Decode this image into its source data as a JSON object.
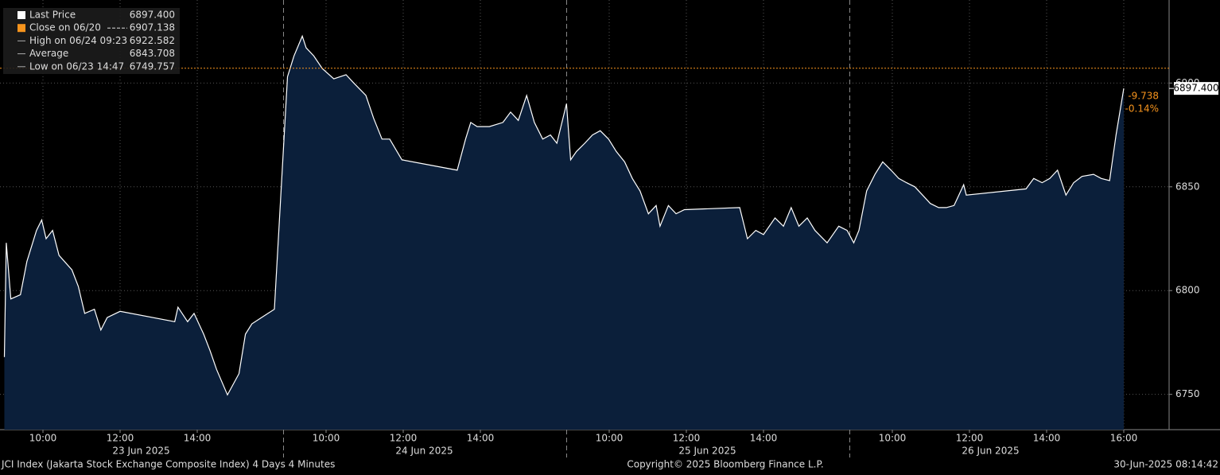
{
  "chart_data": {
    "type": "area",
    "footer_left": "JCI Index (Jakarta Stock Exchange Composite Index) 4 Days 4 Minutes",
    "footer_center": "Copyright© 2025 Bloomberg Finance L.P.",
    "footer_right": "30-Jun-2025 08:14:42",
    "legend": [
      {
        "name": "Last Price",
        "value": {
          "value": 6897.4,
          "label": "6897.400"
        },
        "color": "#ffffff"
      },
      {
        "name": "Close on 06/20",
        "value": 6907.138,
        "color": "#f7941d"
      },
      {
        "name": "High on 06/24 09:23",
        "value": 6922.582,
        "color": "#aaaaaa"
      },
      {
        "name": "Average",
        "value": 6843.708,
        "color": "#aaaaaa"
      },
      {
        "name": "Low on 06/23 14:47",
        "value": 6749.757,
        "color": "#aaaaaa"
      }
    ],
    "last_label": {
      "value": 6897.4,
      "label": "6897.400"
    },
    "change": [
      -9.738,
      {
        "value": -0.14,
        "label": "-0.14%"
      }
    ],
    "day_labels": [
      "23 Jun 2025",
      "24 Jun 2025",
      "25 Jun 2025",
      "26 Jun 2025"
    ],
    "ylim": [
      6733,
      6940
    ],
    "yticks": [
      6750,
      6800,
      6850,
      6900
    ],
    "grid": true,
    "xticks": [
      {
        "value": "2025-06-23 10:00",
        "label": "10:00"
      },
      {
        "value": "2025-06-23 12:00",
        "label": "12:00"
      },
      {
        "value": "2025-06-23 14:00",
        "label": "14:00"
      },
      {
        "value": "2025-06-24 10:00",
        "label": "10:00"
      },
      {
        "value": "2025-06-24 12:00",
        "label": "12:00"
      },
      {
        "value": "2025-06-24 14:00",
        "label": "14:00"
      },
      {
        "value": "2025-06-25 10:00",
        "label": "10:00"
      },
      {
        "value": "2025-06-25 12:00",
        "label": "12:00"
      },
      {
        "value": "2025-06-25 14:00",
        "label": "14:00"
      },
      {
        "value": "2025-06-26 10:00",
        "label": "10:00"
      },
      {
        "value": "2025-06-26 12:00",
        "label": "12:00"
      },
      {
        "value": "2025-06-26 14:00",
        "label": "14:00"
      },
      {
        "value": "2025-06-26 16:00",
        "label": "16:00"
      }
    ],
    "series": [
      {
        "name": "Last Price",
        "color": "#ffffff",
        "fill": "#0b1f3a",
        "x": [
          "2025-06-23 09:00",
          "2025-06-23 09:03",
          "2025-06-23 09:10",
          "2025-06-23 09:25",
          "2025-06-23 09:35",
          "2025-06-23 09:50",
          "2025-06-23 09:58",
          "2025-06-23 10:05",
          "2025-06-23 10:15",
          "2025-06-23 10:25",
          "2025-06-23 10:45",
          "2025-06-23 10:55",
          "2025-06-23 11:05",
          "2025-06-23 11:20",
          "2025-06-23 11:30",
          "2025-06-23 11:40",
          "2025-06-23 12:00",
          "2025-06-23 13:25",
          "2025-06-23 13:30",
          "2025-06-23 13:45",
          "2025-06-23 13:55",
          "2025-06-23 14:10",
          "2025-06-23 14:20",
          "2025-06-23 14:30",
          "2025-06-23 14:47",
          "2025-06-23 15:05",
          "2025-06-23 15:15",
          "2025-06-23 15:25",
          "2025-06-23 15:40",
          "2025-06-23 15:50",
          "2025-06-23 16:00",
          "2025-06-24 09:00",
          "2025-06-24 09:10",
          "2025-06-24 09:23",
          "2025-06-24 09:29",
          "2025-06-24 09:41",
          "2025-06-24 09:54",
          "2025-06-24 10:12",
          "2025-06-24 10:31",
          "2025-06-24 10:43",
          "2025-06-24 11:02",
          "2025-06-24 11:14",
          "2025-06-24 11:27",
          "2025-06-24 11:39",
          "2025-06-24 11:58",
          "2025-06-24 13:24",
          "2025-06-24 13:37",
          "2025-06-24 13:45",
          "2025-06-24 13:55",
          "2025-06-24 14:14",
          "2025-06-24 14:35",
          "2025-06-24 14:47",
          "2025-06-24 14:59",
          "2025-06-24 15:12",
          "2025-06-24 15:24",
          "2025-06-24 15:37",
          "2025-06-24 15:49",
          "2025-06-24 15:59",
          "2025-06-24 16:14",
          "2025-06-25 09:00",
          "2025-06-25 09:09",
          "2025-06-25 09:22",
          "2025-06-25 09:34",
          "2025-06-25 09:46",
          "2025-06-25 09:59",
          "2025-06-25 10:11",
          "2025-06-25 10:24",
          "2025-06-25 10:36",
          "2025-06-25 10:48",
          "2025-06-25 11:01",
          "2025-06-25 11:13",
          "2025-06-25 11:19",
          "2025-06-25 11:32",
          "2025-06-25 11:44",
          "2025-06-25 11:57",
          "2025-06-25 13:23",
          "2025-06-25 13:35",
          "2025-06-25 13:48",
          "2025-06-25 14:00",
          "2025-06-25 14:18",
          "2025-06-25 14:31",
          "2025-06-25 14:43",
          "2025-06-25 14:55",
          "2025-06-25 15:08",
          "2025-06-25 15:20",
          "2025-06-25 15:39",
          "2025-06-25 15:57",
          "2025-06-25 16:10",
          "2025-06-26 09:00",
          "2025-06-26 09:08",
          "2025-06-26 09:20",
          "2025-06-26 09:33",
          "2025-06-26 09:45",
          "2025-06-26 09:58",
          "2025-06-26 10:10",
          "2025-06-26 10:22",
          "2025-06-26 10:35",
          "2025-06-26 10:47",
          "2025-06-26 10:59",
          "2025-06-26 11:12",
          "2025-06-26 11:24",
          "2025-06-26 11:36",
          "2025-06-26 11:51",
          "2025-06-26 11:55",
          "2025-06-26 13:28",
          "2025-06-26 13:40",
          "2025-06-26 13:53",
          "2025-06-26 14:05",
          "2025-06-26 14:17",
          "2025-06-26 14:30",
          "2025-06-26 14:42",
          "2025-06-26 14:55",
          "2025-06-26 15:13",
          "2025-06-26 15:25",
          "2025-06-26 15:38",
          "2025-06-26 15:48",
          "2025-06-26 16:00"
        ],
        "values": [
          6768,
          6823,
          6796,
          6798,
          6814,
          6829,
          6834,
          6825,
          6829,
          6817,
          6810,
          6802,
          6789,
          6791,
          6781,
          6787,
          6790,
          6785,
          6792,
          6785,
          6789,
          6779,
          6771,
          6762,
          6749.757,
          6760,
          6779,
          6784,
          6787,
          6789,
          6791,
          6903,
          6913,
          6922.582,
          6917,
          6913,
          6907,
          6902,
          6904,
          6900,
          6894,
          6883,
          6873,
          6873,
          6863,
          6858,
          6873,
          6881,
          6879,
          6879,
          6881,
          6886,
          6882,
          6894,
          6881,
          6873,
          6875,
          6871,
          6890,
          6863,
          6867,
          6871,
          6875,
          6877,
          6873,
          6867,
          6862,
          6854,
          6848,
          6837,
          6841,
          6831,
          6841,
          6837,
          6839,
          6840,
          6825,
          6829,
          6827,
          6835,
          6831,
          6840,
          6831,
          6835,
          6829,
          6823,
          6831,
          6829,
          6823,
          6829,
          6848,
          6856,
          6862,
          6858,
          6854,
          6852,
          6850,
          6846,
          6842,
          6840,
          6840,
          6841,
          6851,
          6846,
          6849,
          6854,
          6852,
          6854,
          6858,
          6846,
          6852,
          6855,
          6856,
          6854,
          6853,
          6875,
          6897.4
        ]
      }
    ]
  }
}
